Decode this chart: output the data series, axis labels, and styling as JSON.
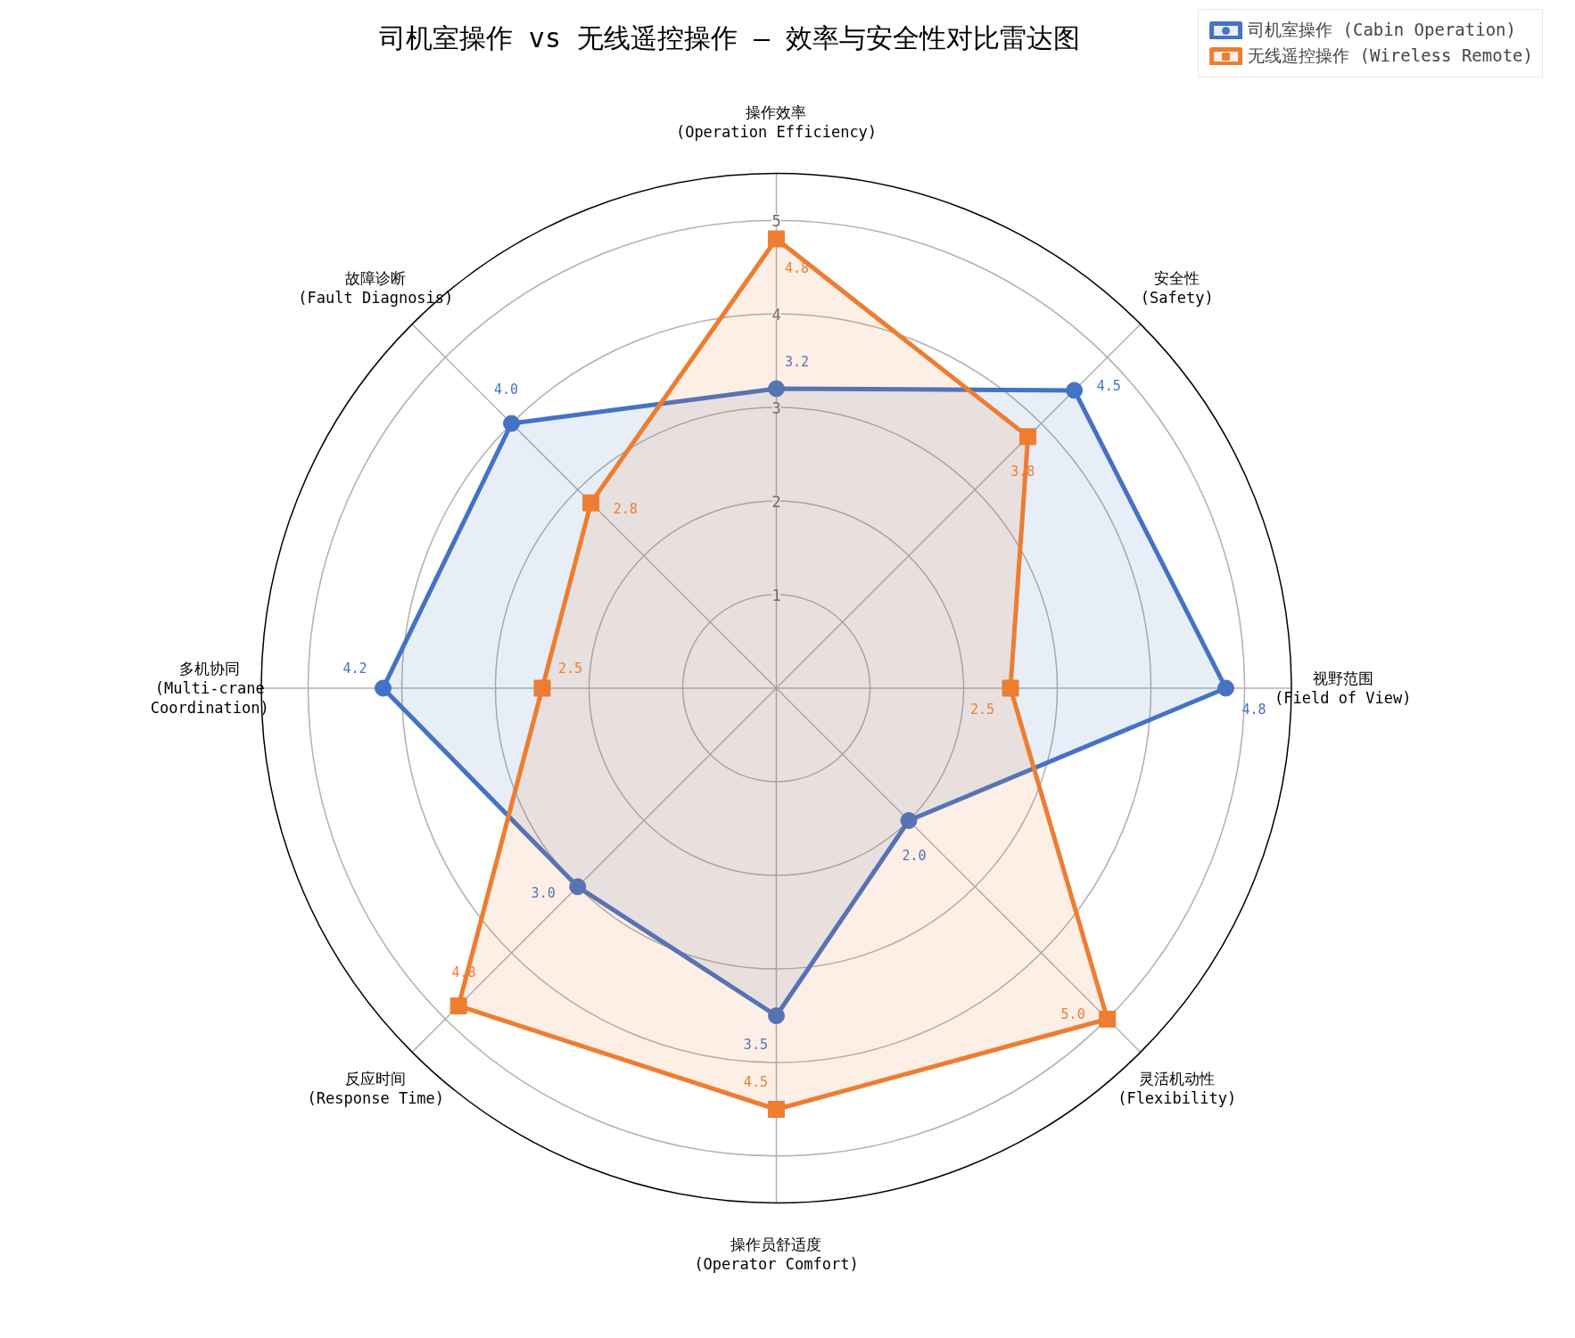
{
  "chart_data": {
    "type": "radar",
    "title": "司机室操作 vs 无线遥控操作 — 效率与安全性对比雷达图",
    "categories": [
      "操作效率\n(Operation Efficiency)",
      "安全性\n(Safety)",
      "视野范围\n(Field of View)",
      "灵活机动性\n(Flexibility)",
      "操作员舒适度\n(Operator Comfort)",
      "反应时间\n(Response Time)",
      "多机协同\n(Multi-crane\nCoordination)",
      "故障诊断\n(Fault Diagnosis)"
    ],
    "series": [
      {
        "name": "司机室操作 (Cabin Operation)",
        "color": "#4472c4",
        "marker": "circle",
        "values": [
          3.2,
          4.5,
          4.8,
          2.0,
          3.5,
          3.0,
          4.2,
          4.0
        ],
        "value_labels": [
          "3.2",
          "4.5",
          "4.8",
          "2.0",
          "3.5",
          "3.0",
          "4.2",
          "4.0"
        ]
      },
      {
        "name": "无线遥控操作 (Wireless Remote)",
        "color": "#ed7d31",
        "marker": "square",
        "values": [
          4.8,
          3.8,
          2.5,
          5.0,
          4.5,
          4.8,
          2.5,
          2.8
        ],
        "value_labels": [
          "4.8",
          "3.8",
          "2.5",
          "5.0",
          "4.5",
          "4.8",
          "2.5",
          "2.8"
        ]
      }
    ],
    "ylim": [
      0,
      5.5
    ],
    "yticks": [
      1,
      2,
      3,
      4,
      5
    ],
    "grid": true,
    "legend": "top right"
  }
}
